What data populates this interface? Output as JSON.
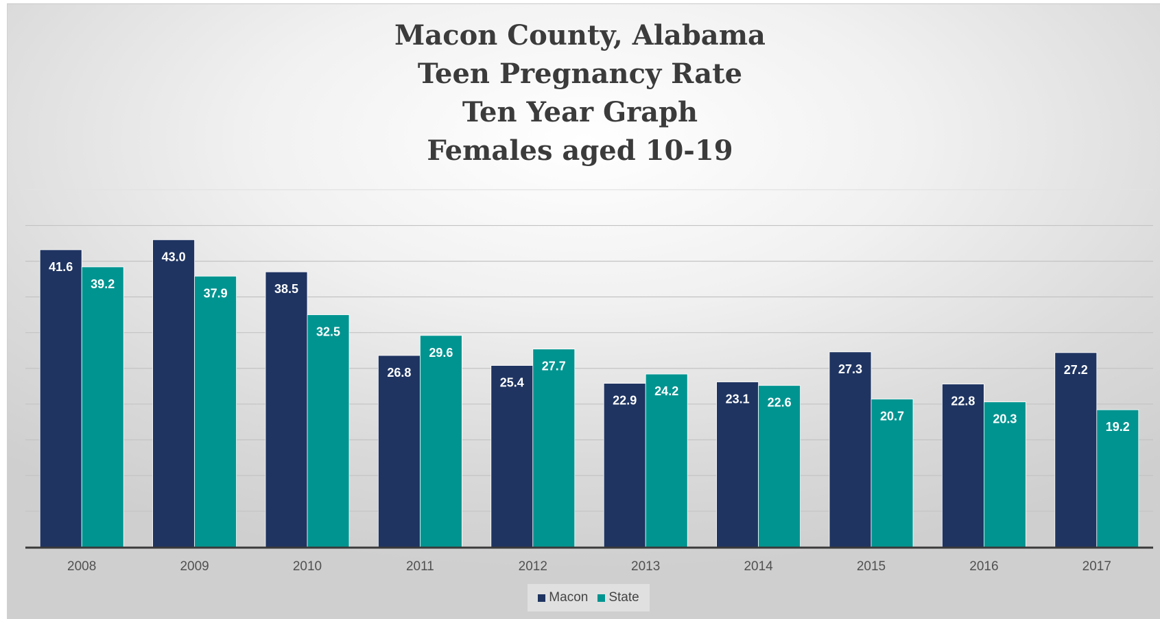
{
  "chart_data": {
    "type": "bar",
    "title_lines": [
      "Macon County, Alabama",
      "Teen Pregnancy Rate",
      "Ten Year Graph",
      "Females aged 10-19"
    ],
    "categories": [
      "2008",
      "2009",
      "2010",
      "2011",
      "2012",
      "2013",
      "2014",
      "2015",
      "2016",
      "2017"
    ],
    "series": [
      {
        "name": "Macon",
        "color": "#1f3461",
        "values": [
          41.6,
          43.0,
          38.5,
          26.8,
          25.4,
          22.9,
          23.1,
          27.3,
          22.8,
          27.2
        ],
        "labels": [
          "41.6",
          "43.0",
          "38.5",
          "26.8",
          "25.4",
          "22.9",
          "23.1",
          "27.3",
          "22.8",
          "27.2"
        ]
      },
      {
        "name": "State",
        "color": "#009490",
        "values": [
          39.2,
          37.9,
          32.5,
          29.6,
          27.7,
          24.2,
          22.6,
          20.7,
          20.3,
          19.2
        ],
        "labels": [
          "39.2",
          "37.9",
          "32.5",
          "29.6",
          "27.7",
          "24.2",
          "22.6",
          "20.7",
          "20.3",
          "19.2"
        ]
      }
    ],
    "ylim": [
      0,
      50
    ],
    "gridlines": true,
    "legend_position": "bottom",
    "y_axis_labels_shown": false
  }
}
